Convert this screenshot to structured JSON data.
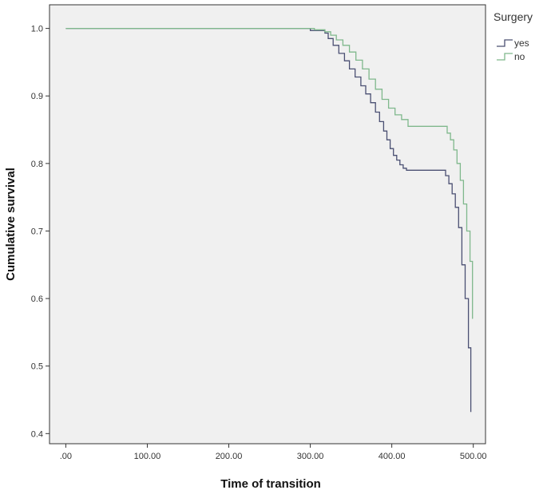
{
  "chart_data": {
    "type": "line",
    "title": "",
    "xlabel": "Time of transition",
    "ylabel": "Cumulative survival",
    "xlim": [
      -20,
      515
    ],
    "ylim": [
      0.385,
      1.035
    ],
    "x_ticks": [
      {
        "value": 0,
        "label": ".00"
      },
      {
        "value": 100,
        "label": "100.00"
      },
      {
        "value": 200,
        "label": "200.00"
      },
      {
        "value": 300,
        "label": "300.00"
      },
      {
        "value": 400,
        "label": "400.00"
      },
      {
        "value": 500,
        "label": "500.00"
      }
    ],
    "y_ticks": [
      {
        "value": 0.4,
        "label": "0.4"
      },
      {
        "value": 0.5,
        "label": "0.5"
      },
      {
        "value": 0.6,
        "label": "0.6"
      },
      {
        "value": 0.7,
        "label": "0.7"
      },
      {
        "value": 0.8,
        "label": "0.8"
      },
      {
        "value": 0.9,
        "label": "0.9"
      },
      {
        "value": 1.0,
        "label": "1.0"
      }
    ],
    "grid": false,
    "legend": {
      "title": "Surgery",
      "position": "outside-top-right"
    },
    "series": [
      {
        "name": "yes",
        "color": "#4a4f72",
        "x": [
          0,
          270,
          300,
          318,
          322,
          328,
          335,
          342,
          348,
          355,
          362,
          368,
          374,
          380,
          385,
          390,
          394,
          398,
          402,
          406,
          410,
          414,
          418,
          422,
          460,
          466,
          470,
          474,
          478,
          482,
          486,
          490,
          494,
          497
        ],
        "y": [
          1.0,
          1.0,
          0.997,
          0.993,
          0.985,
          0.975,
          0.963,
          0.952,
          0.94,
          0.928,
          0.915,
          0.903,
          0.89,
          0.876,
          0.862,
          0.848,
          0.835,
          0.822,
          0.812,
          0.805,
          0.798,
          0.793,
          0.79,
          0.79,
          0.79,
          0.782,
          0.77,
          0.755,
          0.735,
          0.705,
          0.65,
          0.6,
          0.527,
          0.432
        ]
      },
      {
        "name": "no",
        "color": "#7fb88c",
        "x": [
          0,
          280,
          305,
          318,
          325,
          332,
          340,
          348,
          356,
          364,
          372,
          380,
          388,
          396,
          404,
          412,
          420,
          462,
          468,
          472,
          476,
          480,
          484,
          488,
          492,
          496,
          499
        ],
        "y": [
          1.0,
          1.0,
          0.998,
          0.995,
          0.99,
          0.983,
          0.975,
          0.965,
          0.953,
          0.94,
          0.925,
          0.91,
          0.895,
          0.882,
          0.872,
          0.865,
          0.855,
          0.855,
          0.845,
          0.835,
          0.82,
          0.8,
          0.775,
          0.74,
          0.7,
          0.655,
          0.57
        ]
      }
    ]
  }
}
